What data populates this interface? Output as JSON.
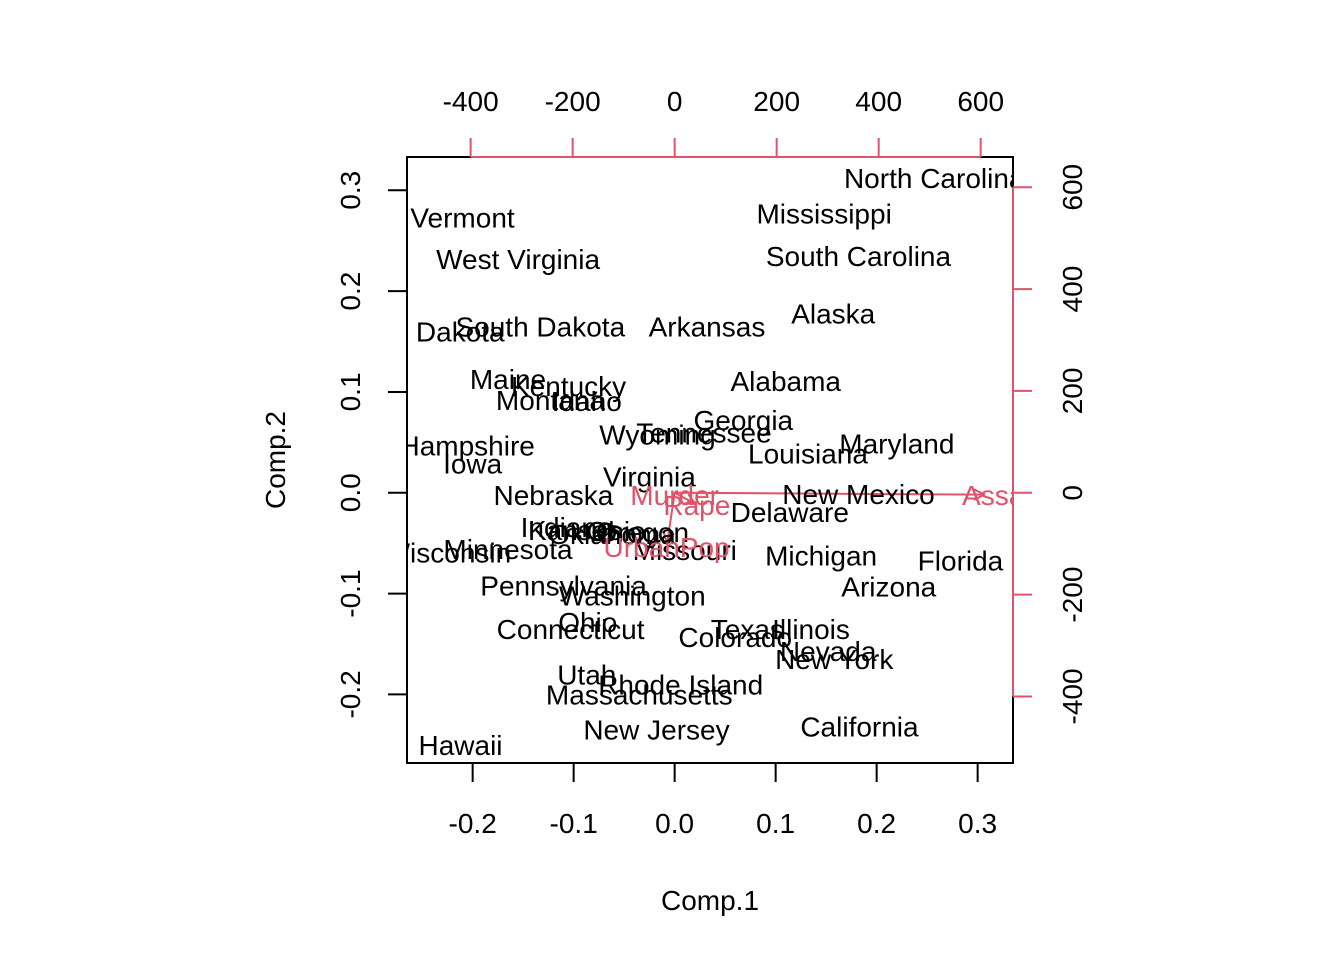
{
  "chart_data": {
    "type": "scatter",
    "title": "",
    "xlabel": "Comp.1",
    "ylabel": "Comp.2",
    "xlim": [
      -0.265,
      0.335
    ],
    "ylim": [
      -0.268,
      0.333
    ],
    "x_ticks": [
      "-0.2",
      "-0.1",
      "0.0",
      "0.1",
      "0.2",
      "0.3"
    ],
    "y_ticks": [
      "-0.2",
      "-0.1",
      "0.0",
      "0.1",
      "0.2",
      "0.3"
    ],
    "top_ticks": [
      "-400",
      "-200",
      "0",
      "200",
      "400",
      "600"
    ],
    "right_ticks": [
      "-400",
      "-200",
      "0",
      "200",
      "400",
      "600"
    ],
    "loadings_color": "#DF536B",
    "scores": [
      {
        "label": "North Carolina",
        "x": 0.257,
        "y": 0.312
      },
      {
        "label": "Mississippi",
        "x": 0.148,
        "y": 0.277
      },
      {
        "label": "Vermont",
        "x": -0.21,
        "y": 0.273
      },
      {
        "label": "West Virginia",
        "x": -0.155,
        "y": 0.232
      },
      {
        "label": "South Carolina",
        "x": 0.182,
        "y": 0.235
      },
      {
        "label": "Alaska",
        "x": 0.157,
        "y": 0.178
      },
      {
        "label": "South Dakota",
        "x": -0.133,
        "y": 0.165
      },
      {
        "label": "North Dakota",
        "x": -0.25,
        "y": 0.16
      },
      {
        "label": "Arkansas",
        "x": 0.032,
        "y": 0.165
      },
      {
        "label": "Maine",
        "x": -0.165,
        "y": 0.113
      },
      {
        "label": "Kentucky",
        "x": -0.105,
        "y": 0.106
      },
      {
        "label": "Montana",
        "x": -0.123,
        "y": 0.092
      },
      {
        "label": "Idaho",
        "x": -0.087,
        "y": 0.091
      },
      {
        "label": "Alabama",
        "x": 0.11,
        "y": 0.111
      },
      {
        "label": "Georgia",
        "x": 0.068,
        "y": 0.072
      },
      {
        "label": "Tennessee",
        "x": 0.029,
        "y": 0.06
      },
      {
        "label": "Wyoming",
        "x": -0.017,
        "y": 0.058
      },
      {
        "label": "Maryland",
        "x": 0.22,
        "y": 0.049
      },
      {
        "label": "Louisiana",
        "x": 0.132,
        "y": 0.039
      },
      {
        "label": "New Hampshire",
        "x": -0.237,
        "y": 0.047
      },
      {
        "label": "Iowa",
        "x": -0.2,
        "y": 0.029
      },
      {
        "label": "Virginia",
        "x": -0.025,
        "y": 0.016
      },
      {
        "label": "Nebraska",
        "x": -0.12,
        "y": -0.002
      },
      {
        "label": "New Mexico",
        "x": 0.182,
        "y": -0.001
      },
      {
        "label": "Delaware",
        "x": 0.114,
        "y": -0.019
      },
      {
        "label": "Indiana",
        "x": -0.107,
        "y": -0.034
      },
      {
        "label": "Kansas",
        "x": -0.099,
        "y": -0.037
      },
      {
        "label": "Ohio",
        "x": -0.058,
        "y": -0.038
      },
      {
        "label": "Oregon",
        "x": -0.032,
        "y": -0.039
      },
      {
        "label": "Oklahoma",
        "x": -0.062,
        "y": -0.041
      },
      {
        "label": "Missouri",
        "x": 0.01,
        "y": -0.057
      },
      {
        "label": "Michigan",
        "x": 0.145,
        "y": -0.062
      },
      {
        "label": "Florida",
        "x": 0.283,
        "y": -0.067
      },
      {
        "label": "Minnesota",
        "x": -0.165,
        "y": -0.056
      },
      {
        "label": "Wisconsin",
        "x": -0.225,
        "y": -0.059
      },
      {
        "label": "Pennsylvania",
        "x": -0.11,
        "y": -0.092
      },
      {
        "label": "Arizona",
        "x": 0.212,
        "y": -0.093
      },
      {
        "label": "Washington",
        "x": -0.042,
        "y": -0.102
      },
      {
        "label": "Ohio",
        "x": -0.086,
        "y": -0.128
      },
      {
        "label": "Connecticut",
        "x": -0.103,
        "y": -0.135
      },
      {
        "label": "Texas",
        "x": 0.072,
        "y": -0.135
      },
      {
        "label": "Illinois",
        "x": 0.135,
        "y": -0.135
      },
      {
        "label": "Colorado",
        "x": 0.06,
        "y": -0.143
      },
      {
        "label": "Nevada",
        "x": 0.152,
        "y": -0.157
      },
      {
        "label": "New York",
        "x": 0.158,
        "y": -0.165
      },
      {
        "label": "Utah",
        "x": -0.087,
        "y": -0.18
      },
      {
        "label": "Rhode Island",
        "x": 0.006,
        "y": -0.19
      },
      {
        "label": "Massachusetts",
        "x": -0.035,
        "y": -0.2
      },
      {
        "label": "New Jersey",
        "x": -0.018,
        "y": -0.235
      },
      {
        "label": "California",
        "x": 0.183,
        "y": -0.232
      },
      {
        "label": "Hawaii",
        "x": -0.212,
        "y": -0.25
      }
    ],
    "loadings": [
      {
        "label": "Murder",
        "x": 0.0,
        "y": -0.002
      },
      {
        "label": "Assault",
        "x": 0.33,
        "y": -0.002
      },
      {
        "label": "Rape",
        "x": 0.022,
        "y": -0.012
      },
      {
        "label": "UrbanPop",
        "x": -0.008,
        "y": -0.054
      }
    ]
  }
}
